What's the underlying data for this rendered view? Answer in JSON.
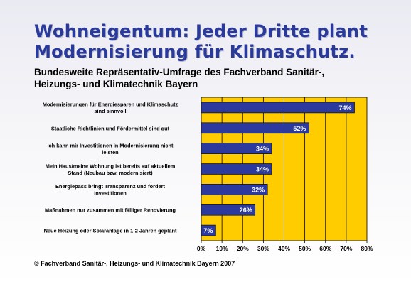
{
  "title_line1": "Wohneigentum: Jeder Dritte plant",
  "title_line2": "Modernisierung für Klimaschutz.",
  "subtitle_line1": "Bundesweite Repräsentativ-Umfrage des Fachverband Sanitär-,",
  "subtitle_line2": "Heizungs- und Klimatechnik Bayern",
  "footer": "© Fachverband Sanitär-, Heizungs- und Klimatechnik Bayern 2007",
  "colors": {
    "plot_background": "#ffcc00",
    "bar": "#2b3a9c",
    "title": "#2a3a9a"
  },
  "chart_data": {
    "type": "bar",
    "orientation": "horizontal",
    "categories": [
      [
        "Modernisierungen für Energiesparen und Klimaschutz",
        "sind sinnvoll"
      ],
      [
        "Staatliche Richtlinien und Fördermittel sind gut"
      ],
      [
        "Ich kann mir Investitionen in Modernisierung nicht",
        "leisten"
      ],
      [
        "Mein Haus/meine Wohnung ist bereits auf aktuellem",
        "Stand (Neubau bzw. modernisiert)"
      ],
      [
        "Energiepass bringt Transparenz und fördert",
        "Investitionen"
      ],
      [
        "Maßnahmen nur zusammen mit fälliger Renovierung"
      ],
      [
        "Neue Heizung oder Solaranlage in 1-2 Jahren geplant"
      ]
    ],
    "values": [
      74,
      52,
      34,
      34,
      32,
      26,
      7
    ],
    "value_labels": [
      "74%",
      "52%",
      "34%",
      "34%",
      "32%",
      "26%",
      "7%"
    ],
    "xlim": [
      0,
      80
    ],
    "xticks": [
      "0%",
      "10%",
      "20%",
      "30%",
      "40%",
      "50%",
      "60%",
      "70%",
      "80%"
    ],
    "grid": "vertical",
    "legend": "none"
  }
}
